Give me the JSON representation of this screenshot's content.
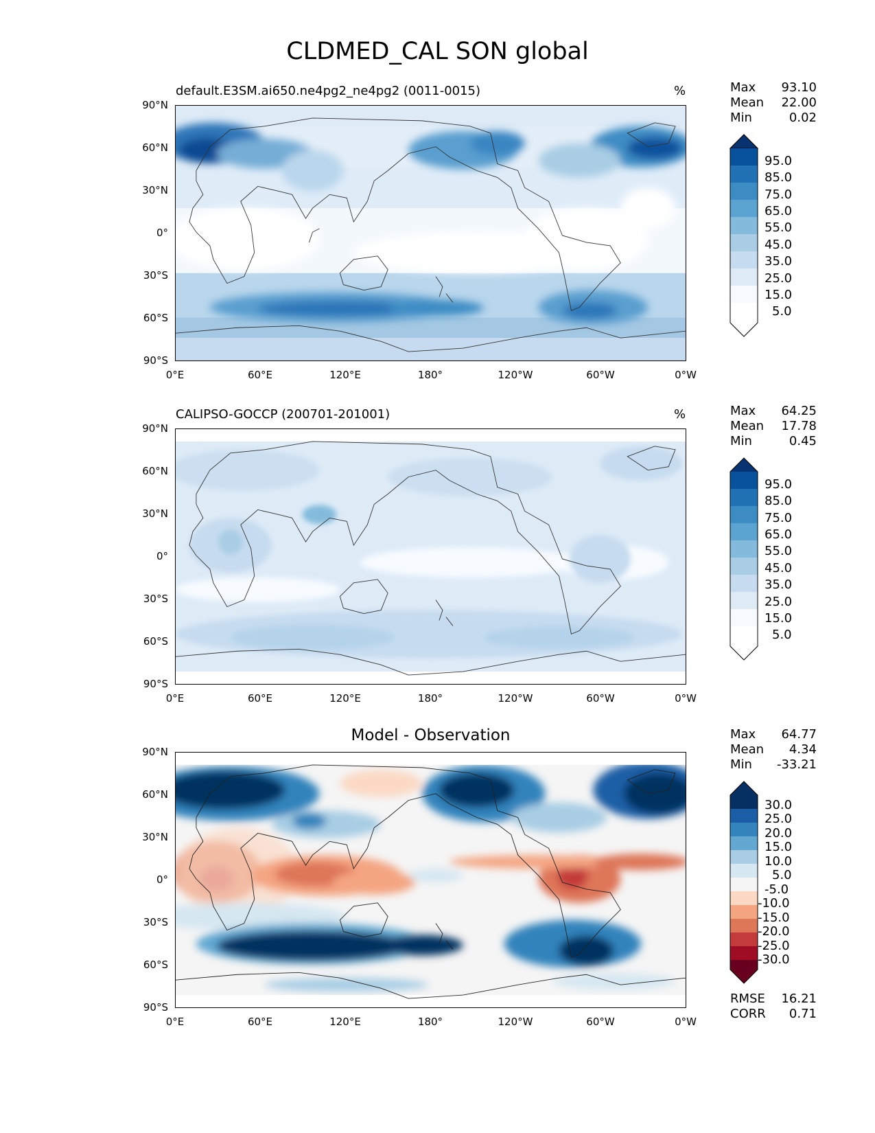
{
  "title": "CLDMED_CAL SON global",
  "unit": "%",
  "x_ticks": [
    "0°E",
    "60°E",
    "120°E",
    "180°",
    "120°W",
    "60°W",
    "0°W"
  ],
  "y_ticks": [
    "90°N",
    "60°N",
    "30°N",
    "0°",
    "30°S",
    "60°S",
    "90°S"
  ],
  "colors": {
    "sequential": [
      "#ffffff",
      "#f7fbff",
      "#deebf7",
      "#c6dbef",
      "#a8cde4",
      "#84bbdc",
      "#5ba3d0",
      "#3d8cc4",
      "#2171b5",
      "#08519c",
      "#083370"
    ],
    "diverging": [
      "#67001f",
      "#9e0d24",
      "#c43b3b",
      "#de7658",
      "#f4a582",
      "#fbd9c5",
      "#f5f5f5",
      "#d5e7f1",
      "#a8cde4",
      "#62a8d1",
      "#3383bc",
      "#1b5ea6",
      "#053061"
    ]
  },
  "panels": [
    {
      "title": "default.E3SM.ai650.ne4pg2_ne4pg2 (0011-0015)",
      "stats": [
        {
          "label": "Max",
          "value": "93.10"
        },
        {
          "label": "Mean",
          "value": "22.00"
        },
        {
          "label": "Min",
          "value": "0.02"
        }
      ],
      "colorbar": [
        "95.0",
        "85.0",
        "75.0",
        "65.0",
        "55.0",
        "45.0",
        "35.0",
        "25.0",
        "15.0",
        "5.0"
      ]
    },
    {
      "title": "CALIPSO-GOCCP (200701-201001)",
      "stats": [
        {
          "label": "Max",
          "value": "64.25"
        },
        {
          "label": "Mean",
          "value": "17.78"
        },
        {
          "label": "Min",
          "value": "0.45"
        }
      ],
      "colorbar": [
        "95.0",
        "85.0",
        "75.0",
        "65.0",
        "55.0",
        "45.0",
        "35.0",
        "25.0",
        "15.0",
        "5.0"
      ]
    },
    {
      "title": "Model - Observation",
      "stats": [
        {
          "label": "Max",
          "value": "64.77"
        },
        {
          "label": "Mean",
          "value": "4.34"
        },
        {
          "label": "Min",
          "value": "-33.21"
        }
      ],
      "colorbar": [
        "30.0",
        "25.0",
        "20.0",
        "15.0",
        "10.0",
        "5.0",
        "-5.0",
        "-10.0",
        "-15.0",
        "-20.0",
        "-25.0",
        "-30.0"
      ],
      "metrics": [
        {
          "label": "RMSE",
          "value": "16.21"
        },
        {
          "label": "CORR",
          "value": "0.71"
        }
      ]
    }
  ]
}
